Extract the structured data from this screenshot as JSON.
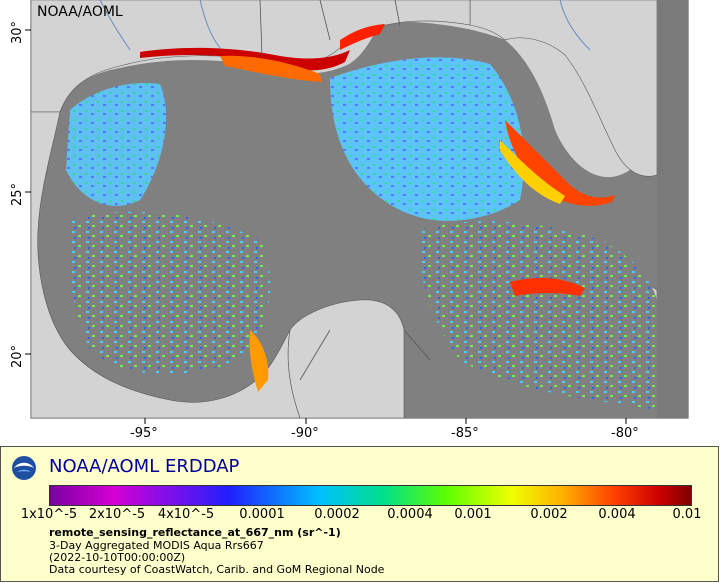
{
  "map": {
    "watermark": "NOAA/AOML",
    "longitude_ticks": [
      "-95°",
      "-90°",
      "-85°",
      "-80°"
    ],
    "latitude_ticks": [
      "30°",
      "25°",
      "20°"
    ],
    "colors": {
      "land": "#d3d3d3",
      "no_data": "#808080",
      "border": "#555555",
      "rivers": "#5b86c2"
    }
  },
  "legend": {
    "title": "NOAA/AOML ERDDAP",
    "colorbar_ticks": [
      "1x10^-5",
      "2x10^-5",
      "4x10^-5",
      "0.0001",
      "0.0002",
      "0.0004",
      "0.001",
      "0.002",
      "0.004",
      "0.01"
    ],
    "variable": "remote_sensing_reflectance_at_667_nm (sr^-1)",
    "dataset": "3-Day Aggregated MODIS Aqua Rrs667",
    "time": "(2022-10-10T00:00:00Z)",
    "credit": "Data courtesy of CoastWatch, Carib. and GoM Regional Node"
  }
}
